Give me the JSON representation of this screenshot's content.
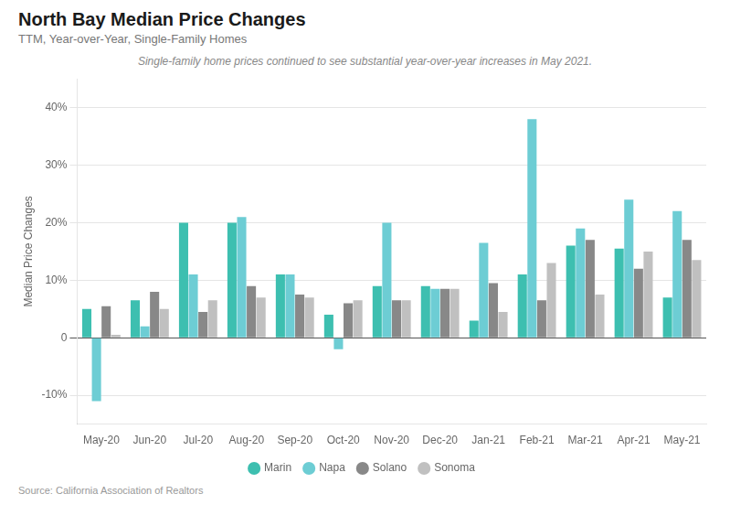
{
  "chart_data": {
    "type": "bar",
    "title": "North Bay Median Price Changes",
    "subtitle": "TTM, Year-over-Year, Single-Family Homes",
    "annotation": "Single-family home prices continued to see substantial year-over-year increases in May 2021.",
    "ylabel": "Median Price Changes",
    "source": "Source:  California Association of Realtors",
    "categories": [
      "May-20",
      "Jun-20",
      "Jul-20",
      "Aug-20",
      "Sep-20",
      "Oct-20",
      "Nov-20",
      "Dec-20",
      "Jan-21",
      "Feb-21",
      "Mar-21",
      "Apr-21",
      "May-21"
    ],
    "series": [
      {
        "name": "Marin",
        "color": "#3dbfb0",
        "values": [
          5.0,
          6.5,
          20.0,
          20.0,
          11.0,
          4.0,
          9.0,
          9.0,
          3.0,
          11.0,
          16.0,
          15.5,
          7.0
        ]
      },
      {
        "name": "Napa",
        "color": "#6dcdd4",
        "values": [
          -11.0,
          2.0,
          11.0,
          21.0,
          11.0,
          -2.0,
          20.0,
          8.5,
          16.5,
          38.0,
          19.0,
          24.0,
          22.0
        ]
      },
      {
        "name": "Solano",
        "color": "#888888",
        "values": [
          5.5,
          8.0,
          4.5,
          9.0,
          7.5,
          6.0,
          6.5,
          8.5,
          9.5,
          6.5,
          17.0,
          12.0,
          17.0
        ]
      },
      {
        "name": "Sonoma",
        "color": "#c0c0c0",
        "values": [
          0.5,
          5.0,
          6.5,
          7.0,
          7.0,
          6.5,
          6.5,
          8.5,
          4.5,
          13.0,
          7.5,
          15.0,
          13.5
        ]
      }
    ],
    "ylim": [
      -15,
      45
    ],
    "yticks": [
      {
        "value": -10,
        "label": "-10%"
      },
      0,
      {
        "value": 10,
        "label": "10%"
      },
      {
        "value": 20,
        "label": "20%"
      },
      {
        "value": 30,
        "label": "30%"
      },
      {
        "value": 40,
        "label": "40%"
      }
    ],
    "grid": true,
    "legend": "bottom"
  }
}
